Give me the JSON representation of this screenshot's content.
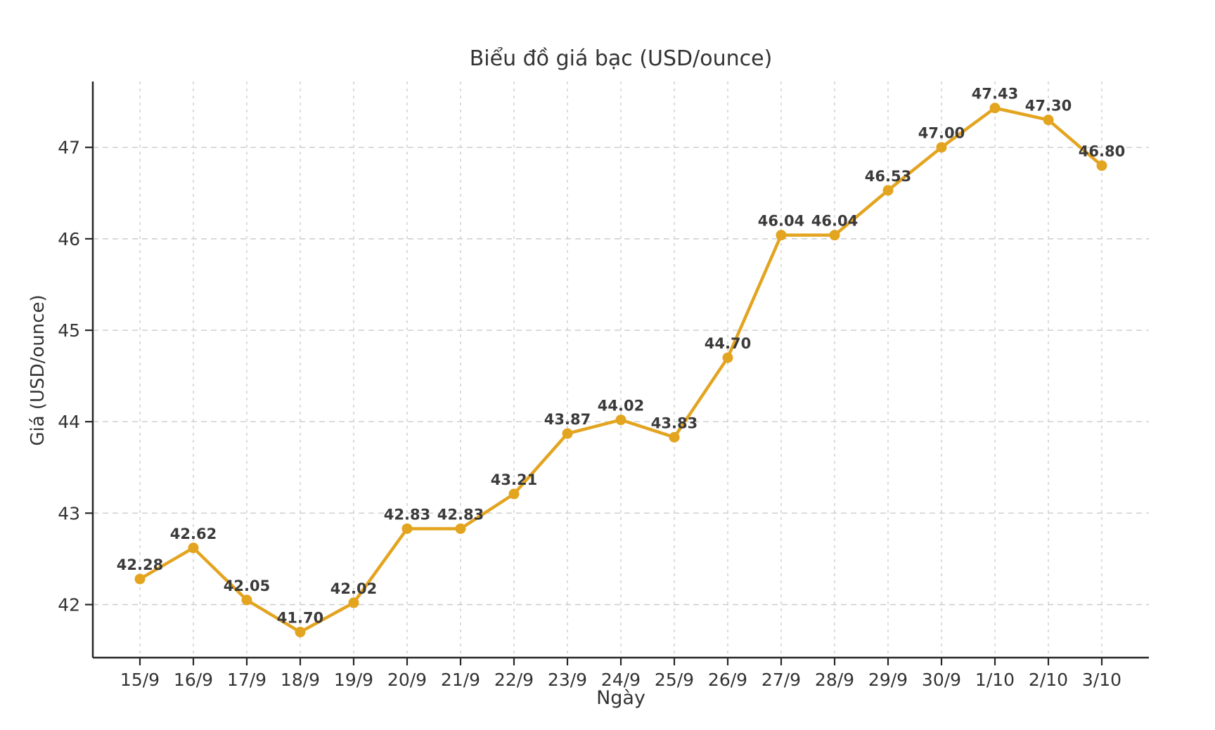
{
  "chart_data": {
    "type": "line",
    "title": "Biểu đồ giá bạc (USD/ounce)",
    "xlabel": "Ngày",
    "ylabel": "Giá (USD/ounce)",
    "categories": [
      "15/9",
      "16/9",
      "17/9",
      "18/9",
      "19/9",
      "20/9",
      "21/9",
      "22/9",
      "23/9",
      "24/9",
      "25/9",
      "26/9",
      "27/9",
      "28/9",
      "29/9",
      "30/9",
      "1/10",
      "2/10",
      "3/10"
    ],
    "values": [
      42.28,
      42.62,
      42.05,
      41.7,
      42.02,
      42.83,
      42.83,
      43.21,
      43.87,
      44.02,
      43.83,
      44.7,
      46.04,
      46.04,
      46.53,
      47.0,
      47.43,
      47.3,
      46.8
    ],
    "point_labels": [
      "42.28",
      "42.62",
      "42.05",
      "41.70",
      "42.02",
      "42.83",
      "42.83",
      "43.21",
      "43.87",
      "44.02",
      "43.83",
      "44.70",
      "46.04",
      "46.04",
      "46.53",
      "47.00",
      "47.43",
      "47.30",
      "46.80"
    ],
    "yticks": [
      42,
      43,
      44,
      45,
      46,
      47
    ],
    "ylim": [
      41.42,
      47.72
    ],
    "grid": true,
    "legend_position": "none",
    "line_color": "#E3A41F",
    "marker_color": "#E3A41F",
    "point_label_color": "#3a3a3a",
    "axis_color": "#262626",
    "tick_label_color": "#333333",
    "grid_color": "#cccccc",
    "background_color": "#ffffff"
  }
}
